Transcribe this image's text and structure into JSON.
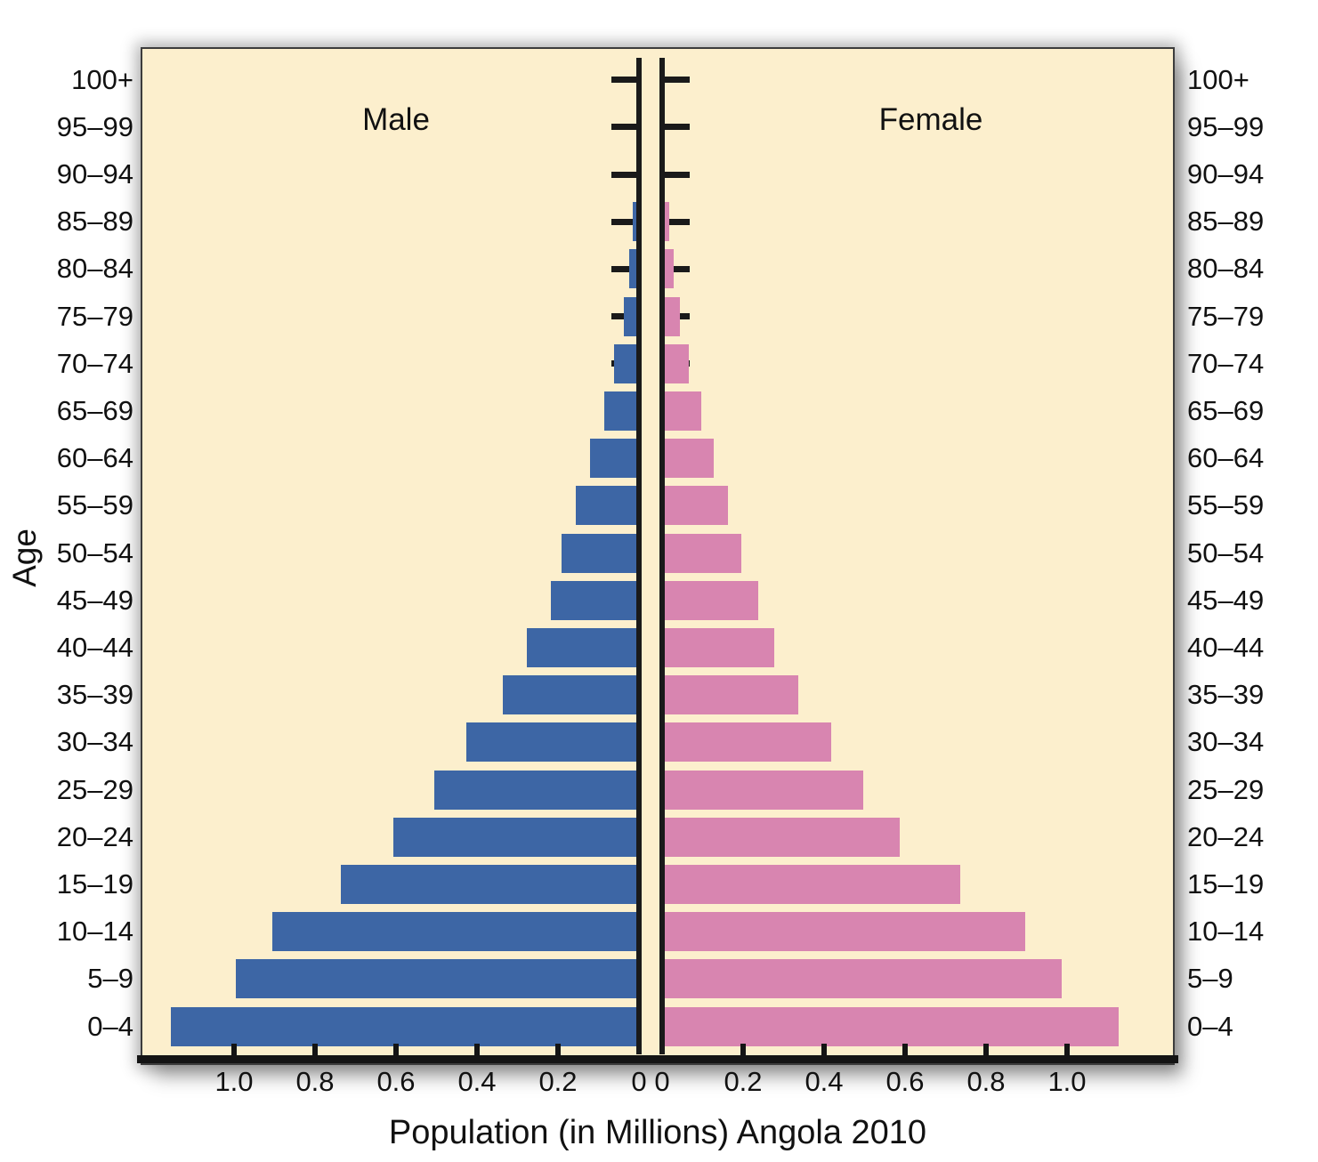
{
  "chart_data": {
    "type": "bar",
    "subtype": "population-pyramid",
    "title": "Population (in Millions) Angola 2010",
    "ylabel": "Age",
    "male_label": "Male",
    "female_label": "Female",
    "units": "millions",
    "grid": false,
    "legend_position": "top-inside",
    "panel_background": "#fcefcd",
    "axis_color": "#1a1a1a",
    "categories_top_to_bottom": [
      "100+",
      "95–99",
      "90–94",
      "85–89",
      "80–84",
      "75–79",
      "70–74",
      "65–69",
      "60–64",
      "55–59",
      "50–54",
      "45–49",
      "40–44",
      "35–39",
      "30–34",
      "25–29",
      "20–24",
      "15–19",
      "10–14",
      "5–9",
      "0–4"
    ],
    "series": [
      {
        "name": "Male",
        "side": "left",
        "color": "#3d66a5",
        "values": [
          0,
          0,
          0,
          0.008,
          0.018,
          0.03,
          0.055,
          0.08,
          0.115,
          0.15,
          0.185,
          0.21,
          0.27,
          0.33,
          0.42,
          0.5,
          0.6,
          0.73,
          0.9,
          0.99,
          1.15
        ]
      },
      {
        "name": "Female",
        "side": "right",
        "color": "#d885b0",
        "values": [
          0,
          0,
          0,
          0.012,
          0.022,
          0.038,
          0.06,
          0.09,
          0.12,
          0.155,
          0.19,
          0.23,
          0.27,
          0.33,
          0.41,
          0.49,
          0.58,
          0.73,
          0.89,
          0.98,
          1.12
        ]
      }
    ],
    "x_axis": {
      "tick_step": 0.2,
      "x_max_labeled": 1.0,
      "left_tick_labels": [
        "1.0",
        "0.8",
        "0.6",
        "0.4",
        "0.2",
        "0"
      ],
      "right_tick_labels": [
        "0",
        "0.2",
        "0.4",
        "0.6",
        "0.8",
        "1.0"
      ]
    }
  }
}
